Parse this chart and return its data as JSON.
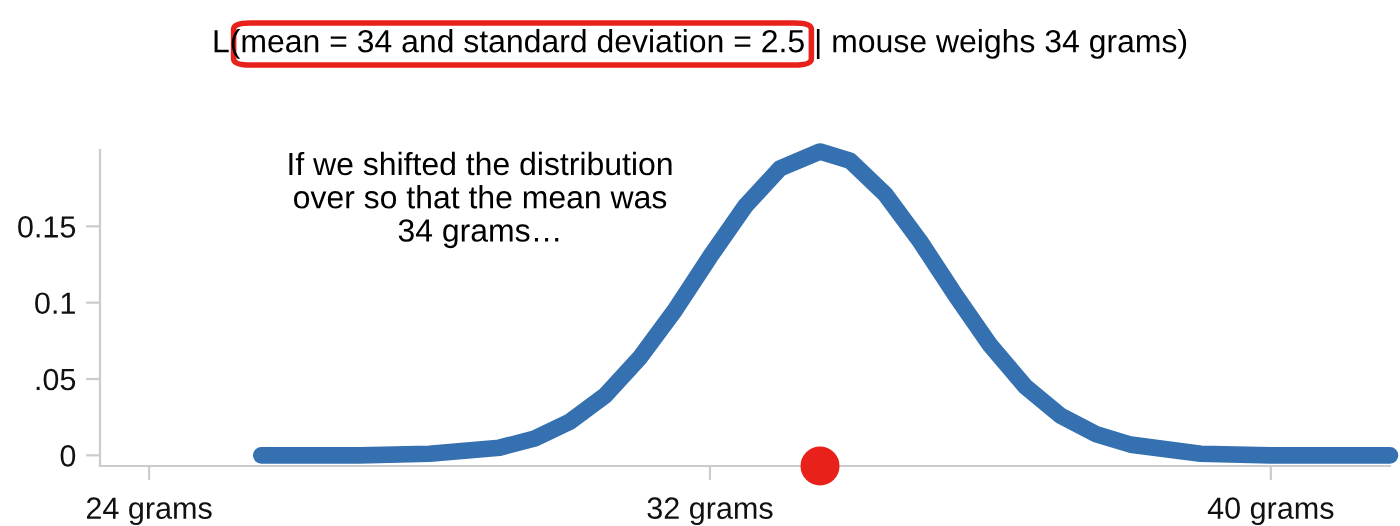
{
  "chart_data": {
    "type": "line",
    "title": "L(mean = 34 and standard deviation = 2.5 | mouse weighs 34 grams)",
    "annotations": [
      "If we shifted the distribution\nover so that the mean was\n34 grams…"
    ],
    "series": [
      {
        "color": "#3571b0",
        "x": [
          25.6,
          26,
          27,
          28,
          29,
          29.5,
          30,
          30.5,
          31,
          31.5,
          32,
          32.5,
          33,
          33.57,
          34,
          34.5,
          35,
          35.5,
          36,
          36.5,
          37,
          37.5,
          38,
          39,
          40,
          41,
          41.7
        ],
        "values": [
          0,
          0,
          0,
          0.001,
          0.005,
          0.011,
          0.022,
          0.039,
          0.064,
          0.095,
          0.13,
          0.163,
          0.188,
          0.199,
          0.193,
          0.171,
          0.14,
          0.105,
          0.072,
          0.045,
          0.026,
          0.014,
          0.007,
          0.001,
          0,
          0,
          0
        ]
      },
      {
        "type": "scatter",
        "color": "#e8211a",
        "x": [
          33.57
        ],
        "values": [
          -0.007
        ]
      }
    ],
    "xlim": [
      23.3,
      41.7
    ],
    "ylim": [
      -0.007,
      0.2
    ],
    "xticks": [
      {
        "value": 24,
        "label": "24 grams"
      },
      {
        "value": 32,
        "label": "32 grams"
      },
      {
        "value": 40,
        "label": "40 grams"
      }
    ],
    "yticks": [
      {
        "value": 0,
        "label": "0"
      },
      {
        "value": 0.05,
        "label": ".05"
      },
      {
        "value": 0.1,
        "label": "0.1"
      },
      {
        "value": 0.15,
        "label": "0.15"
      }
    ],
    "grid": false,
    "legend": false
  }
}
